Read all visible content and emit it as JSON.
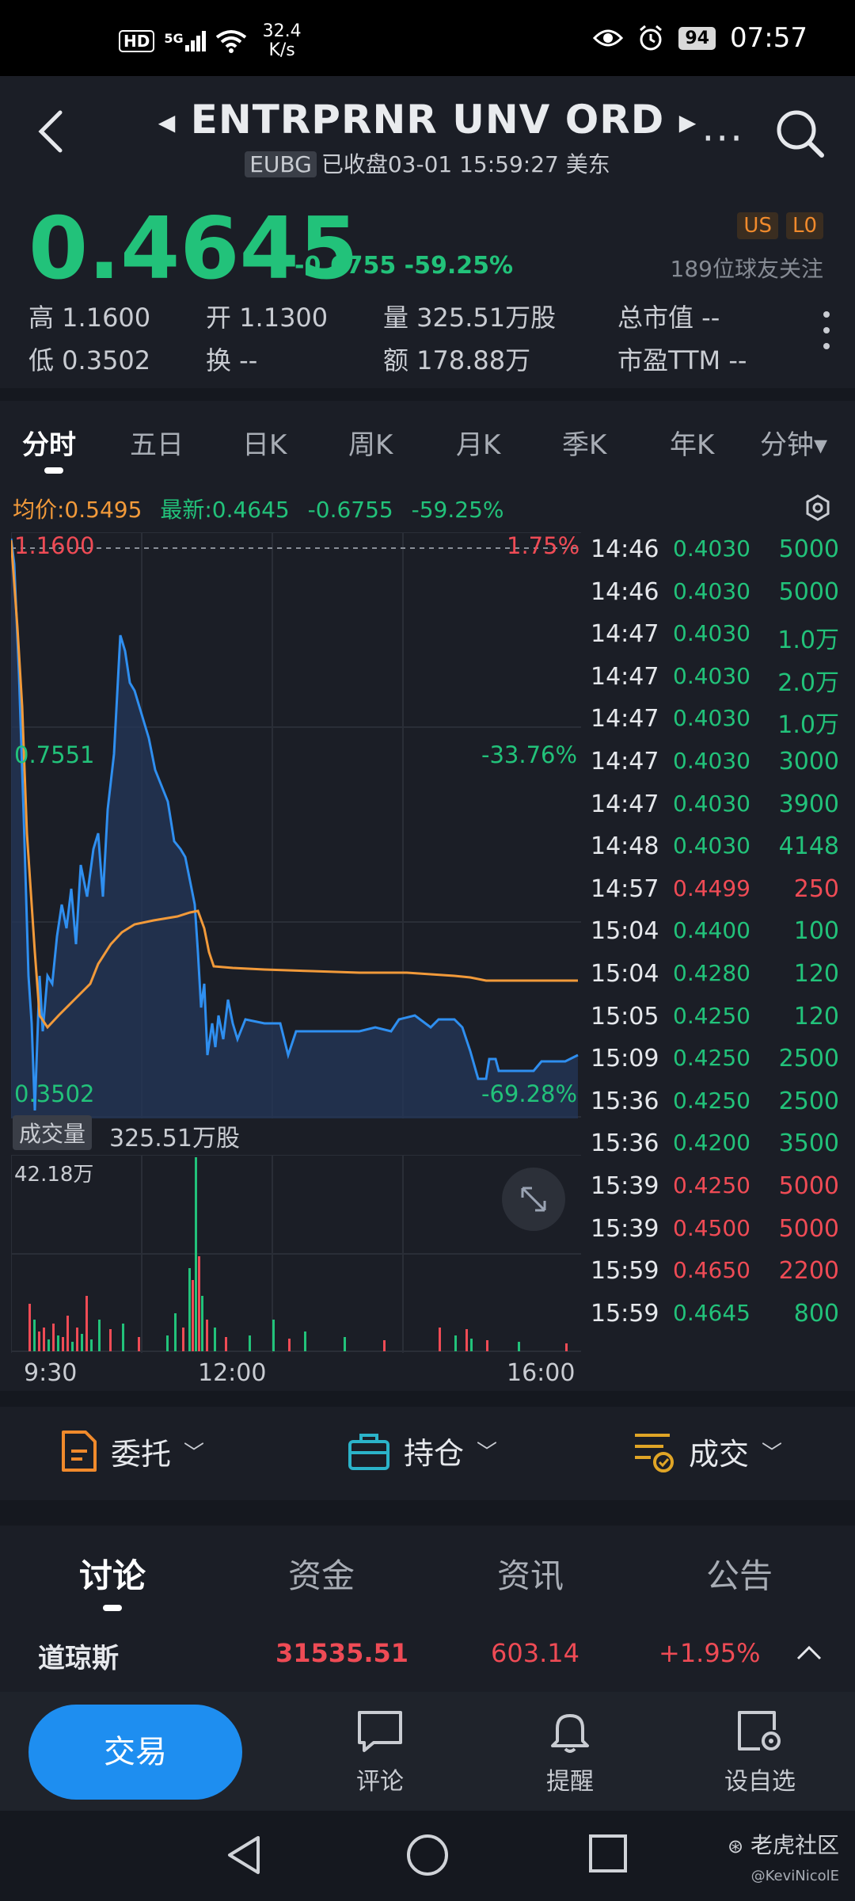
{
  "statusbar": {
    "hd": "HD",
    "signal": "5G",
    "speed_value": "32.4",
    "speed_unit": "K/s",
    "battery": "94",
    "time": "07:57"
  },
  "header": {
    "title": "ENTRPRNR UNV ORD",
    "ticker": "EUBG",
    "status": "已收盘03-01 15:59:27 美东",
    "more": "···"
  },
  "quote": {
    "price": "0.4645",
    "change": "-0.6755 -59.25%",
    "badges": [
      "US",
      "L0"
    ],
    "followers": "189位球友关注",
    "stats": [
      "高 1.1600",
      "开 1.1300",
      "量 325.51万股",
      "总市值 --",
      "低 0.3502",
      "换 --",
      "额 178.88万",
      "市盈TTM --"
    ]
  },
  "periods": [
    "分时",
    "五日",
    "日K",
    "周K",
    "月K",
    "季K",
    "年K",
    "分钟▾"
  ],
  "legend": {
    "avg": "均价:0.5495",
    "latest": "最新:0.4645",
    "change": "-0.6755",
    "pct": "-59.25%"
  },
  "axis": {
    "top_price": "1.1600",
    "top_pct": "1.75%",
    "mid_price": "0.7551",
    "mid_pct": "-33.76%",
    "bottom_price": "0.3502",
    "bottom_pct": "-69.28%",
    "times": [
      "9:30",
      "12:00",
      "16:00"
    ]
  },
  "trades": [
    {
      "t": "14:46",
      "p": "0.4030",
      "v": "5000",
      "up": false
    },
    {
      "t": "14:46",
      "p": "0.4030",
      "v": "5000",
      "up": false
    },
    {
      "t": "14:47",
      "p": "0.4030",
      "v": "1.0万",
      "up": false
    },
    {
      "t": "14:47",
      "p": "0.4030",
      "v": "2.0万",
      "up": false
    },
    {
      "t": "14:47",
      "p": "0.4030",
      "v": "1.0万",
      "up": false
    },
    {
      "t": "14:47",
      "p": "0.4030",
      "v": "3000",
      "up": false
    },
    {
      "t": "14:47",
      "p": "0.4030",
      "v": "3900",
      "up": false
    },
    {
      "t": "14:48",
      "p": "0.4030",
      "v": "4148",
      "up": false
    },
    {
      "t": "14:57",
      "p": "0.4499",
      "v": "250",
      "up": true
    },
    {
      "t": "15:04",
      "p": "0.4400",
      "v": "100",
      "up": false
    },
    {
      "t": "15:04",
      "p": "0.4280",
      "v": "120",
      "up": false
    },
    {
      "t": "15:05",
      "p": "0.4250",
      "v": "120",
      "up": false
    },
    {
      "t": "15:09",
      "p": "0.4250",
      "v": "2500",
      "up": false
    },
    {
      "t": "15:36",
      "p": "0.4250",
      "v": "2500",
      "up": false
    },
    {
      "t": "15:36",
      "p": "0.4200",
      "v": "3500",
      "up": false
    },
    {
      "t": "15:39",
      "p": "0.4250",
      "v": "5000",
      "up": true
    },
    {
      "t": "15:39",
      "p": "0.4500",
      "v": "5000",
      "up": true
    },
    {
      "t": "15:59",
      "p": "0.4650",
      "v": "2200",
      "up": true
    },
    {
      "t": "15:59",
      "p": "0.4645",
      "v": "800",
      "up": false
    }
  ],
  "volume": {
    "tag": "成交量",
    "total": "325.51万股",
    "max": "42.18万"
  },
  "orderbar": {
    "orders": "委托",
    "positions": "持仓",
    "fills": "成交"
  },
  "newstabs": [
    "讨论",
    "资金",
    "资讯",
    "公告"
  ],
  "index": {
    "name": "道琼斯",
    "value": "31535.51",
    "points": "603.14",
    "pct": "+1.95%"
  },
  "actions": {
    "trade": "交易",
    "comment": "评论",
    "alert": "提醒",
    "watchlist": "设自选"
  },
  "watermark": {
    "brand": "老虎社区",
    "user": "@KeviNicolE"
  },
  "colors": {
    "down": "#22c27a",
    "up": "#ef4b55",
    "avg_line": "#f29a3a",
    "price_line": "#2f8ff0",
    "accent": "#1e8ef0"
  }
}
